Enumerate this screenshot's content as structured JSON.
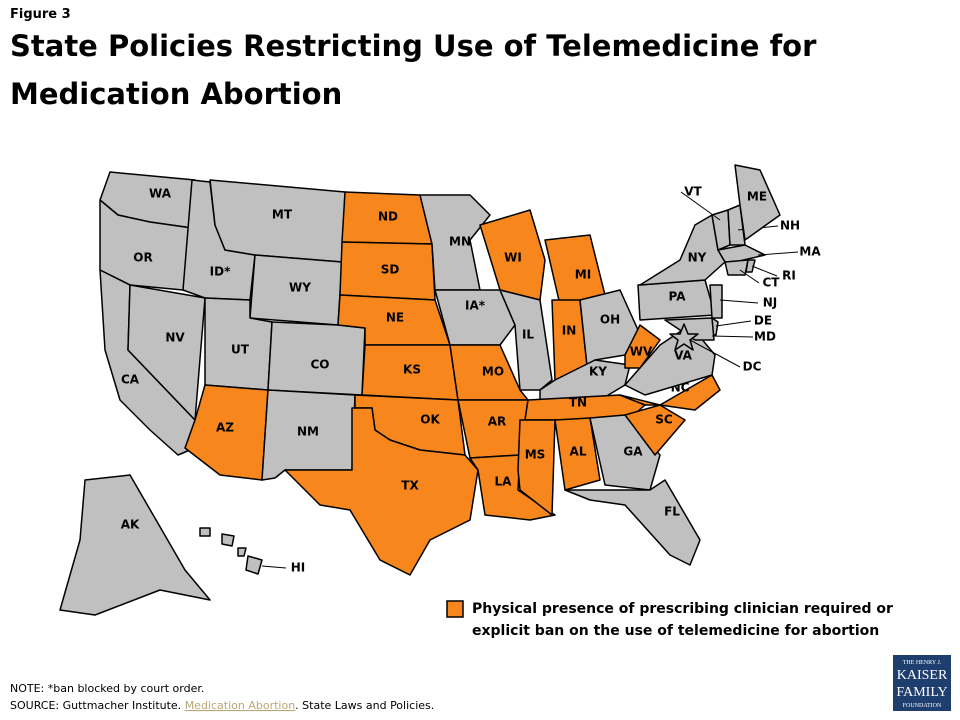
{
  "figure_label": "Figure 3",
  "title": "State Policies Restricting Use of Telemedicine for Medication Abortion",
  "restricted_color": "#f7861c",
  "default_color": "#c0c0c0",
  "states": [
    {
      "label": "WA",
      "restricted": false
    },
    {
      "label": "OR",
      "restricted": false
    },
    {
      "label": "CA",
      "restricted": false
    },
    {
      "label": "NV",
      "restricted": false
    },
    {
      "label": "ID*",
      "restricted": false
    },
    {
      "label": "MT",
      "restricted": false
    },
    {
      "label": "WY",
      "restricted": false
    },
    {
      "label": "UT",
      "restricted": false
    },
    {
      "label": "CO",
      "restricted": false
    },
    {
      "label": "AZ",
      "restricted": true
    },
    {
      "label": "NM",
      "restricted": false
    },
    {
      "label": "ND",
      "restricted": true
    },
    {
      "label": "SD",
      "restricted": true
    },
    {
      "label": "NE",
      "restricted": true
    },
    {
      "label": "KS",
      "restricted": true
    },
    {
      "label": "OK",
      "restricted": true
    },
    {
      "label": "TX",
      "restricted": true
    },
    {
      "label": "MN",
      "restricted": false
    },
    {
      "label": "IA*",
      "restricted": false
    },
    {
      "label": "MO",
      "restricted": true
    },
    {
      "label": "AR",
      "restricted": true
    },
    {
      "label": "LA",
      "restricted": true
    },
    {
      "label": "WI",
      "restricted": true
    },
    {
      "label": "IL",
      "restricted": false
    },
    {
      "label": "MI",
      "restricted": true
    },
    {
      "label": "IN",
      "restricted": true
    },
    {
      "label": "OH",
      "restricted": false
    },
    {
      "label": "KY",
      "restricted": false
    },
    {
      "label": "TN",
      "restricted": true
    },
    {
      "label": "MS",
      "restricted": true
    },
    {
      "label": "AL",
      "restricted": true
    },
    {
      "label": "GA",
      "restricted": false
    },
    {
      "label": "FL",
      "restricted": false
    },
    {
      "label": "SC",
      "restricted": true
    },
    {
      "label": "NC",
      "restricted": true
    },
    {
      "label": "VA",
      "restricted": false
    },
    {
      "label": "WV",
      "restricted": true
    },
    {
      "label": "PA",
      "restricted": false
    },
    {
      "label": "NY",
      "restricted": false
    },
    {
      "label": "VT",
      "restricted": false
    },
    {
      "label": "NH",
      "restricted": false
    },
    {
      "label": "ME",
      "restricted": false
    },
    {
      "label": "MA",
      "restricted": false
    },
    {
      "label": "CT",
      "restricted": false
    },
    {
      "label": "RI",
      "restricted": false
    },
    {
      "label": "NJ",
      "restricted": false
    },
    {
      "label": "DE",
      "restricted": false
    },
    {
      "label": "MD",
      "restricted": false
    },
    {
      "label": "DC",
      "restricted": false
    },
    {
      "label": "AK",
      "restricted": false
    },
    {
      "label": "HI",
      "restricted": false
    }
  ],
  "legend": {
    "label_line1": "Physical presence of prescribing clinician required or",
    "label_line2": "explicit ban on the use of telemedicine for abortion"
  },
  "note": "NOTE: *ban blocked by court order.",
  "source": {
    "prefix": "SOURCE: Guttmacher Institute.",
    "link": "Medication Abortion",
    "suffix": ". State Laws and Policies."
  },
  "logo": {
    "line1": "THE HENRY J.",
    "line2": "KAISER",
    "line3": "FAMILY",
    "line4": "FOUNDATION"
  }
}
